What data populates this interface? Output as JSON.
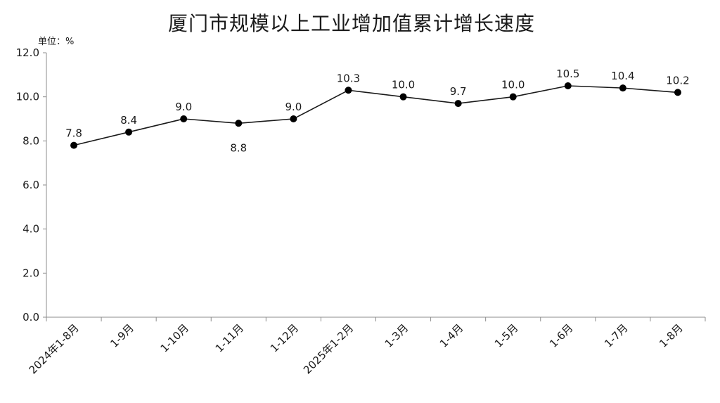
{
  "chart_data": {
    "type": "line",
    "title": "厦门市规模以上工业增加值累计增长速度",
    "unit_label": "单位：%",
    "categories": [
      "2024年1-8月",
      "1-9月",
      "1-10月",
      "1-11月",
      "1-12月",
      "2025年1-2月",
      "1-3月",
      "1-4月",
      "1-5月",
      "1-6月",
      "1-7月",
      "1-8月"
    ],
    "series": [
      {
        "values": [
          7.8,
          8.4,
          9.0,
          8.8,
          9.0,
          10.3,
          10.0,
          9.7,
          10.0,
          10.5,
          10.4,
          10.2
        ],
        "data_labels": [
          "7.8",
          "8.4",
          "9.0",
          "8.8",
          "9.0",
          "10.3",
          "10.0",
          "9.7",
          "10.0",
          "10.5",
          "10.4",
          "10.2"
        ],
        "label_positions": [
          "above",
          "above",
          "above",
          "below",
          "above",
          "above",
          "above",
          "above",
          "above",
          "above",
          "above",
          "above"
        ]
      }
    ],
    "ylim": [
      0,
      12
    ],
    "yticks": [
      "0.0",
      "2.0",
      "4.0",
      "6.0",
      "8.0",
      "10.0",
      "12.0"
    ],
    "grid": false,
    "legend": "none",
    "colors": {
      "line": "#1a1a1a",
      "marker": "#000000",
      "axis": "#8c8c8c"
    }
  }
}
